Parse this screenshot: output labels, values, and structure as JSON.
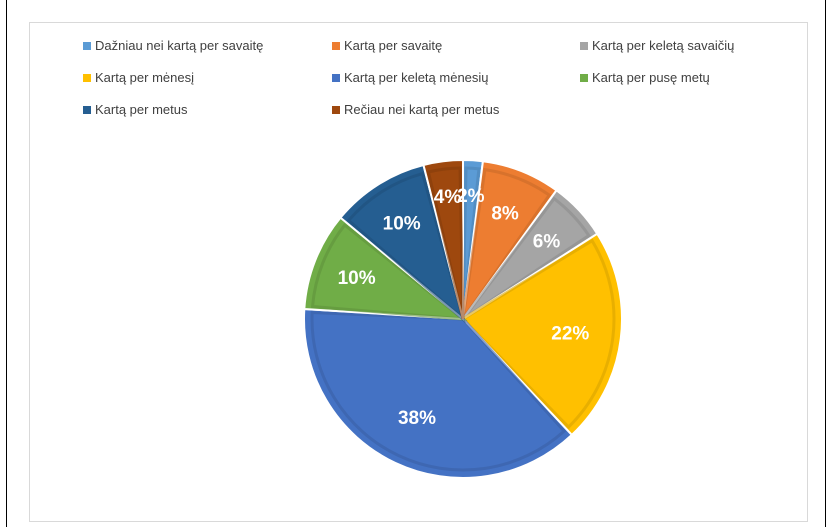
{
  "chart_data": {
    "type": "pie",
    "categories": [
      "Dažniau nei kartą per savaitę",
      "Kartą per savaitę",
      "Kartą per keletą savaičių",
      "Kartą per mėnesį",
      "Kartą per keletą mėnesių",
      "Kartą per pusę metų",
      "Kartą per metus",
      "Rečiau nei kartą per metus"
    ],
    "values": [
      2,
      8,
      6,
      22,
      38,
      10,
      10,
      4
    ],
    "labels": [
      "2%",
      "8%",
      "6%",
      "22%",
      "38%",
      "10%",
      "10%",
      "4%"
    ],
    "colors": [
      "#5b9bd5",
      "#ed7d31",
      "#a5a5a5",
      "#ffc000",
      "#4472c4",
      "#70ad47",
      "#255e91",
      "#9e480e"
    ],
    "legend_position": "top",
    "title": ""
  }
}
